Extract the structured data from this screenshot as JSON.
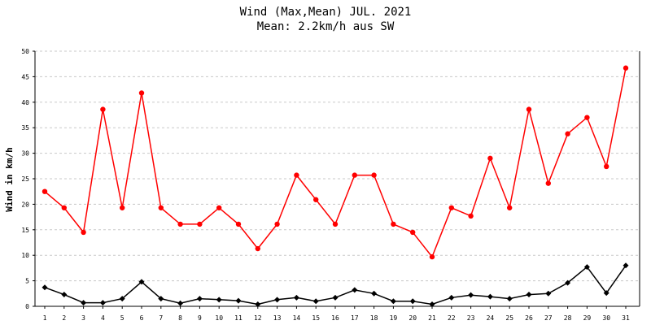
{
  "chart_data": {
    "type": "line",
    "title": "Wind (Max,Mean) JUL. 2021",
    "subtitle": "Mean: 2.2km/h aus SW",
    "xlabel": "",
    "ylabel": "Wind in km/h",
    "ylim": [
      0,
      50
    ],
    "yticks": [
      0,
      5,
      10,
      15,
      20,
      25,
      30,
      35,
      40,
      45,
      50
    ],
    "grid": true,
    "categories": [
      "1",
      "2",
      "3",
      "4",
      "5",
      "6",
      "7",
      "8",
      "9",
      "10",
      "11",
      "12",
      "13",
      "14",
      "15",
      "16",
      "17",
      "18",
      "19",
      "20",
      "21",
      "22",
      "23",
      "24",
      "25",
      "26",
      "27",
      "28",
      "29",
      "30",
      "31"
    ],
    "series": [
      {
        "color": "#ff0000",
        "marker": "circle",
        "values": [
          22.5,
          19.3,
          14.5,
          38.6,
          19.3,
          41.8,
          19.3,
          16.1,
          16.1,
          19.3,
          16.1,
          11.3,
          16.1,
          25.7,
          20.9,
          16.1,
          25.7,
          25.7,
          16.1,
          14.5,
          9.7,
          19.3,
          17.7,
          29.0,
          19.3,
          38.6,
          24.1,
          33.8,
          37.0,
          27.4,
          46.7
        ]
      },
      {
        "color": "#000000",
        "marker": "diamond",
        "values": [
          3.7,
          2.3,
          0.7,
          0.7,
          1.5,
          4.8,
          1.5,
          0.6,
          1.5,
          1.3,
          1.1,
          0.4,
          1.3,
          1.7,
          1.0,
          1.7,
          3.2,
          2.5,
          1.0,
          1.0,
          0.4,
          1.7,
          2.2,
          1.9,
          1.5,
          2.3,
          2.5,
          4.6,
          7.7,
          2.6,
          8.0
        ]
      }
    ]
  }
}
